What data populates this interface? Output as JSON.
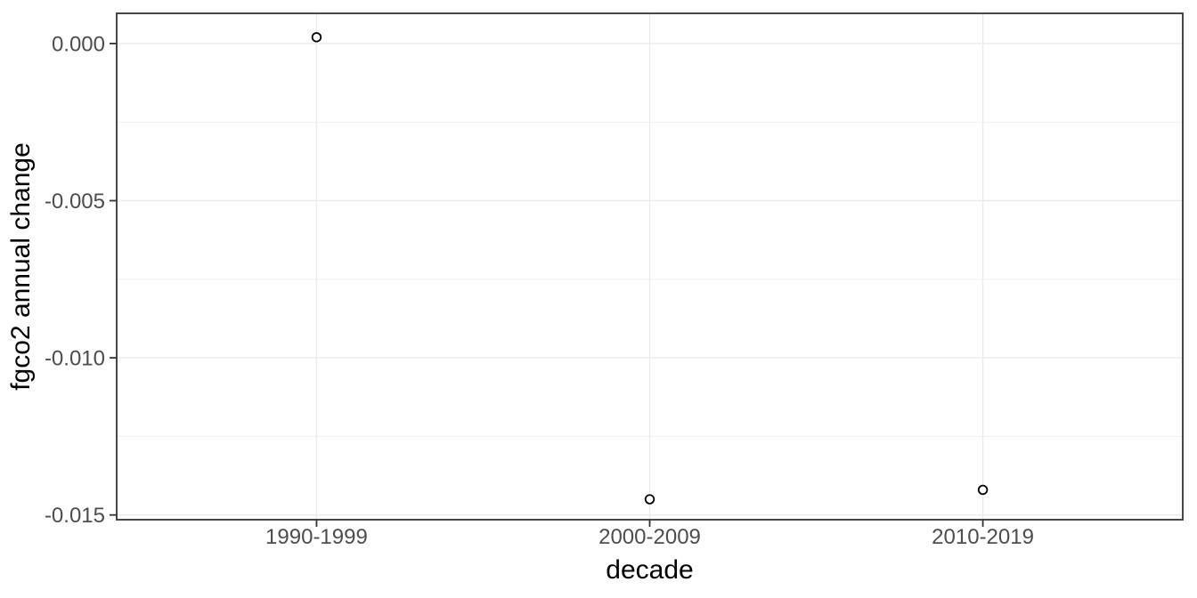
{
  "chart_data": {
    "type": "scatter",
    "title": "",
    "xlabel": "decade",
    "ylabel": "fgco2 annual change",
    "categories": [
      "1990-1999",
      "2000-2009",
      "2010-2019"
    ],
    "values": [
      0.0002,
      -0.0145,
      -0.0142
    ],
    "y_ticks": [
      0,
      -0.005,
      -0.01,
      -0.015
    ],
    "y_tick_labels": [
      "0.000",
      "-0.005",
      "-0.010",
      "-0.015"
    ],
    "y_minor_ticks": [
      -0.0025,
      -0.0075,
      -0.0125
    ],
    "ylim": [
      -0.01515,
      0.00096
    ],
    "grid": "major+minor",
    "legend_position": "none",
    "point_style": "open-circle",
    "theme": {
      "background": "#ffffff",
      "panel_background": "#ffffff",
      "panel_border_color": "#333333",
      "grid_major_color": "#ebebeb",
      "grid_minor_color": "#efefef",
      "tick_mark_color": "#333333",
      "tick_label_color": "#4d4d4d",
      "axis_title_color": "#000000",
      "point_color": "#000000"
    }
  }
}
